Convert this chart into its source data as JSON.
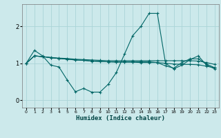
{
  "xlabel": "Humidex (Indice chaleur)",
  "ylabel": "",
  "bg_color": "#cce9eb",
  "grid_color": "#aad4d7",
  "line_color": "#006666",
  "xlim": [
    -0.5,
    23.5
  ],
  "ylim": [
    -0.2,
    2.6
  ],
  "yticks": [
    0,
    1,
    2
  ],
  "xticks": [
    0,
    1,
    2,
    3,
    4,
    5,
    6,
    7,
    8,
    9,
    10,
    11,
    12,
    13,
    14,
    15,
    16,
    17,
    18,
    19,
    20,
    21,
    22,
    23
  ],
  "series1_x": [
    0,
    1,
    2,
    3,
    4,
    5,
    6,
    7,
    8,
    9,
    10,
    11,
    12,
    13,
    14,
    15,
    16,
    17,
    18,
    19,
    20,
    21,
    22,
    23
  ],
  "series1_y": [
    1.0,
    1.35,
    1.2,
    0.95,
    0.9,
    0.55,
    0.23,
    0.32,
    0.22,
    0.22,
    0.43,
    0.75,
    1.25,
    1.75,
    2.0,
    2.35,
    2.35,
    1.0,
    0.85,
    0.95,
    1.1,
    1.2,
    0.95,
    0.85
  ],
  "series2_x": [
    0,
    1,
    2,
    3,
    4,
    5,
    6,
    7,
    8,
    9,
    10,
    11,
    12,
    13,
    14,
    15,
    16,
    17,
    18,
    19,
    20,
    21,
    22,
    23
  ],
  "series2_y": [
    1.0,
    1.2,
    1.18,
    1.16,
    1.14,
    1.13,
    1.11,
    1.1,
    1.09,
    1.08,
    1.07,
    1.07,
    1.07,
    1.07,
    1.07,
    1.07,
    1.07,
    1.07,
    1.07,
    1.07,
    1.07,
    1.06,
    1.02,
    0.97
  ],
  "series3_x": [
    0,
    1,
    2,
    3,
    4,
    5,
    6,
    7,
    8,
    9,
    10,
    11,
    12,
    13,
    14,
    15,
    16,
    17,
    18,
    19,
    20,
    21,
    22,
    23
  ],
  "series3_y": [
    1.0,
    1.2,
    1.18,
    1.15,
    1.13,
    1.11,
    1.09,
    1.08,
    1.06,
    1.05,
    1.04,
    1.03,
    1.03,
    1.03,
    1.02,
    1.02,
    1.02,
    1.0,
    0.98,
    0.97,
    0.97,
    0.96,
    0.92,
    0.88
  ],
  "series4_x": [
    0,
    1,
    2,
    3,
    4,
    5,
    6,
    7,
    8,
    9,
    10,
    11,
    12,
    13,
    14,
    15,
    16,
    17,
    18,
    19,
    20,
    21,
    22,
    23
  ],
  "series4_y": [
    1.0,
    1.2,
    1.18,
    1.15,
    1.13,
    1.11,
    1.09,
    1.08,
    1.06,
    1.05,
    1.04,
    1.04,
    1.04,
    1.04,
    1.04,
    1.04,
    1.02,
    0.93,
    0.87,
    1.02,
    1.12,
    1.12,
    0.98,
    0.88
  ]
}
